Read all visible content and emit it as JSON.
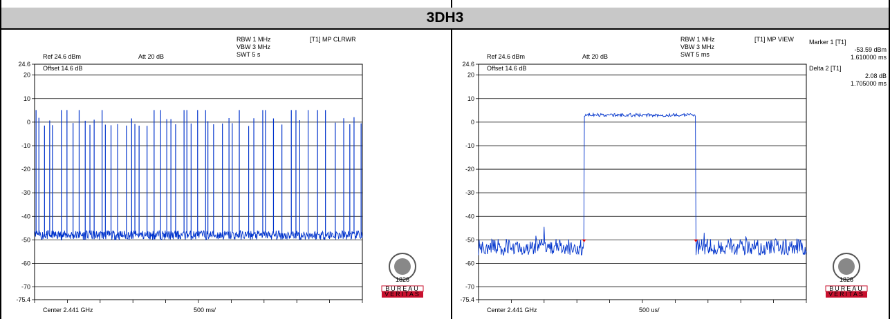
{
  "title": "3DH3",
  "bv_logo": {
    "year": "1828",
    "line1": "BUREAU",
    "line2": "VERITAS",
    "color": "#c8102e"
  },
  "chart_data": [
    {
      "type": "line",
      "name": "left-panel",
      "settings": {
        "rbw": "RBW 1 MHz",
        "vbw": "VBW 3 MHz",
        "swt": "SWT 5 s",
        "trace_mode": "[T1] MP CLRWR",
        "ref": "Ref 24.6 dBm",
        "att": "Att  20 dB",
        "offset": "Offset 14.6 dB",
        "center": "Center 2.441 GHz",
        "span_div": "500 ms/"
      },
      "y_ticks": [
        "24.6",
        "20",
        "10",
        "0",
        "-10",
        "-20",
        "-30",
        "-40",
        "-50",
        "-60",
        "-70",
        "-75.4"
      ],
      "y_tick_values": [
        24.6,
        20,
        10,
        0,
        -10,
        -20,
        -30,
        -40,
        -50,
        -60,
        -70,
        -75.4
      ],
      "ylim": [
        -75.4,
        24.6
      ],
      "xlim": [
        0,
        5000
      ],
      "x_unit": "ms",
      "noise_floor_dbm": -48,
      "peak_dbm": 5,
      "line_color": "#0033cc"
    },
    {
      "type": "line",
      "name": "right-panel",
      "settings": {
        "rbw": "RBW 1 MHz",
        "vbw": "VBW 3 MHz",
        "swt": "SWT 5 ms",
        "trace_mode": "[T1] MP VIEW",
        "ref": "Ref 24.6 dBm",
        "att": "Att  20 dB",
        "offset": "Offset 14.6 dB",
        "center": "Center 2.441 GHz",
        "span_div": "500 us/"
      },
      "markers": {
        "marker1_label": "Marker 1 [T1]",
        "marker1_level": "-53.59 dBm",
        "marker1_time": "1.610000 ms",
        "delta2_label": "Delta 2 [T1]",
        "delta2_level": "2.08 dB",
        "delta2_time": "1.705000 ms"
      },
      "y_ticks": [
        "24.6",
        "20",
        "10",
        "0",
        "-10",
        "-20",
        "-30",
        "-40",
        "-50",
        "-60",
        "-70",
        "-75.4"
      ],
      "y_tick_values": [
        24.6,
        20,
        10,
        0,
        -10,
        -20,
        -30,
        -40,
        -50,
        -60,
        -70,
        -75.4
      ],
      "ylim": [
        -75.4,
        24.6
      ],
      "xlim": [
        0,
        5
      ],
      "x_unit": "ms",
      "pulse_start_ms": 1.61,
      "pulse_end_ms": 3.315,
      "pulse_level_dbm": 3,
      "noise_floor_dbm": -53,
      "line_color": "#0033cc"
    }
  ]
}
